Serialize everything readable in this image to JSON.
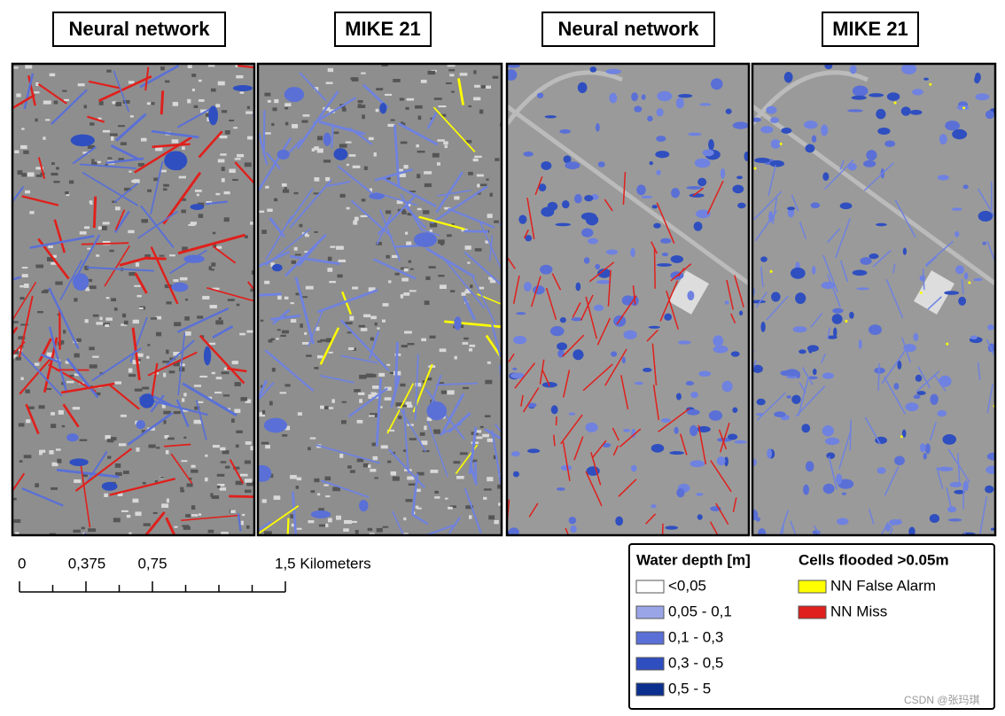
{
  "panels": [
    {
      "title": "Neural network"
    },
    {
      "title": "MIKE 21"
    },
    {
      "title": "Neural network"
    },
    {
      "title": "MIKE 21"
    }
  ],
  "scale_bar": {
    "labels": [
      "0",
      "0,375",
      "0,75",
      "1,5 Kilometers"
    ]
  },
  "legend": {
    "water_depth": {
      "title": "Water depth [m]",
      "items": [
        {
          "label": "<0,05",
          "color": "#ffffff"
        },
        {
          "label": "0,05 - 0,1",
          "color": "#9aa5e8"
        },
        {
          "label": "0,1 - 0,3",
          "color": "#5a70d6"
        },
        {
          "label": "0,3 - 0,5",
          "color": "#2f4fc0"
        },
        {
          "label": "0,5 - 5",
          "color": "#0a2f8f"
        }
      ]
    },
    "flooded": {
      "title": "Cells flooded >0.05m",
      "items": [
        {
          "label": "NN False Alarm",
          "color": "#ffff00"
        },
        {
          "label": "NN Miss",
          "color": "#e0201c"
        }
      ]
    }
  },
  "watermark": "CSDN @张玛琪"
}
